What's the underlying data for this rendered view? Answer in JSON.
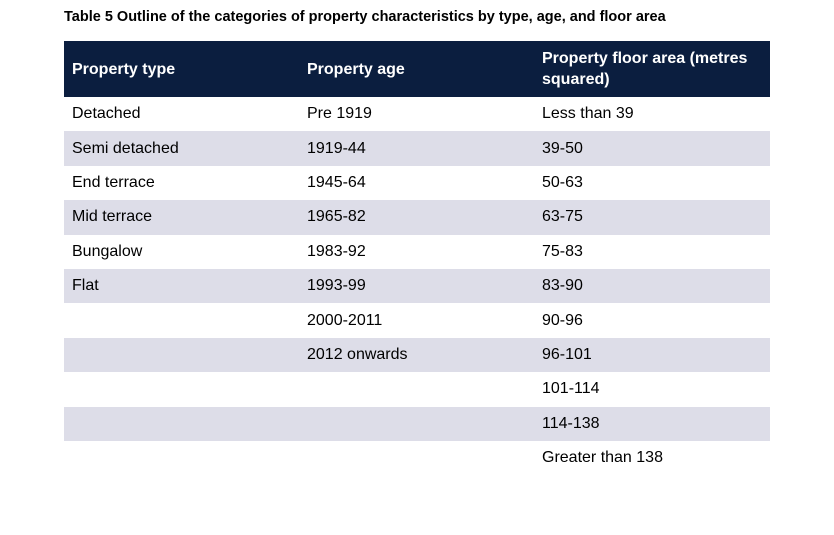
{
  "caption": "Table 5 Outline of the categories of property characteristics by type, age, and floor area",
  "columns": [
    "Property type",
    "Property age",
    "Property floor area (metres squared)"
  ],
  "rows": [
    [
      "Detached",
      "Pre 1919",
      "Less than 39"
    ],
    [
      "Semi detached",
      "1919-44",
      "39-50"
    ],
    [
      "End terrace",
      "1945-64",
      "50-63"
    ],
    [
      "Mid terrace",
      "1965-82",
      "63-75"
    ],
    [
      "Bungalow",
      "1983-92",
      "75-83"
    ],
    [
      "Flat",
      "1993-99",
      "83-90"
    ],
    [
      "",
      "2000-2011",
      "90-96"
    ],
    [
      "",
      "2012 onwards",
      "96-101"
    ],
    [
      "",
      "",
      "101-114"
    ],
    [
      "",
      "",
      "114-138"
    ],
    [
      "",
      "",
      "Greater than 138"
    ]
  ],
  "colors": {
    "header_background": "#0b1e3f",
    "header_text": "#ffffff",
    "band_row": "#dddde8"
  }
}
